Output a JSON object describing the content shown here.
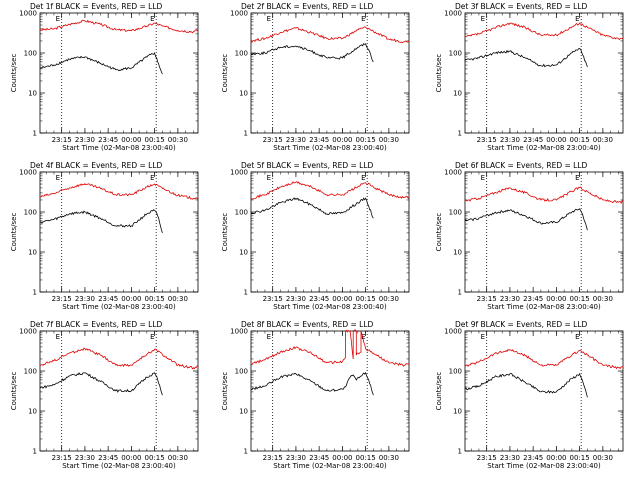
{
  "chart_data": [
    {
      "type": "line",
      "title": "Det 1f BLACK = Events, RED = LLD",
      "xlabel": "Start Time (02-Mar-08 23:00:40)",
      "ylabel": "Counts/sec",
      "y_scale": "log",
      "ylim": [
        1,
        1000
      ],
      "y_ticks": [
        "1",
        "10",
        "100",
        "1000"
      ],
      "xlim": [
        "23:01",
        "00:43"
      ],
      "x_ticks": [
        "23:15",
        "23:30",
        "23:45",
        "00:00",
        "00:15",
        "00:30"
      ],
      "markers": [
        {
          "label": "E",
          "time": "23:15"
        },
        {
          "label": "E",
          "time": "00:16"
        }
      ],
      "series": [
        {
          "name": "LLD",
          "color": "#e00000",
          "times": [
            "23:01",
            "23:10",
            "23:20",
            "23:30",
            "23:40",
            "23:50",
            "00:00",
            "00:10",
            "00:15",
            "00:20",
            "00:30",
            "00:40",
            "00:43"
          ],
          "values": [
            380,
            400,
            520,
            640,
            520,
            380,
            360,
            470,
            560,
            470,
            370,
            340,
            380
          ]
        },
        {
          "name": "Events",
          "color": "#000000",
          "times": [
            "23:01",
            "23:10",
            "23:20",
            "23:30",
            "23:40",
            "23:50",
            "00:00",
            "00:10",
            "00:15",
            "00:17",
            "00:20"
          ],
          "values": [
            42,
            50,
            70,
            80,
            55,
            38,
            42,
            80,
            100,
            60,
            30
          ]
        }
      ]
    },
    {
      "type": "line",
      "title": "Det 2f BLACK = Events, RED = LLD",
      "xlabel": "Start Time (02-Mar-08 23:00:40)",
      "ylabel": "Counts/sec",
      "y_scale": "log",
      "ylim": [
        1,
        1000
      ],
      "y_ticks": [
        "1",
        "10",
        "100",
        "1000"
      ],
      "xlim": [
        "23:01",
        "00:43"
      ],
      "x_ticks": [
        "23:15",
        "23:30",
        "23:45",
        "00:00",
        "00:15",
        "00:30"
      ],
      "markers": [
        {
          "label": "E",
          "time": "23:15"
        },
        {
          "label": "E",
          "time": "00:16"
        }
      ],
      "series": [
        {
          "name": "LLD",
          "color": "#e00000",
          "times": [
            "23:01",
            "23:10",
            "23:20",
            "23:30",
            "23:40",
            "23:50",
            "00:00",
            "00:10",
            "00:15",
            "00:20",
            "00:30",
            "00:40",
            "00:43"
          ],
          "values": [
            200,
            230,
            330,
            420,
            320,
            230,
            230,
            380,
            440,
            350,
            220,
            190,
            200
          ]
        },
        {
          "name": "Events",
          "color": "#000000",
          "times": [
            "23:01",
            "23:10",
            "23:20",
            "23:30",
            "23:40",
            "23:50",
            "00:00",
            "00:10",
            "00:15",
            "00:17",
            "00:20"
          ],
          "values": [
            95,
            100,
            140,
            150,
            110,
            75,
            75,
            140,
            170,
            120,
            60
          ]
        }
      ]
    },
    {
      "type": "line",
      "title": "Det 3f BLACK = Events, RED = LLD",
      "xlabel": "Start Time (02-Mar-08 23:00:40)",
      "ylabel": "Counts/sec",
      "y_scale": "log",
      "ylim": [
        1,
        1000
      ],
      "y_ticks": [
        "1",
        "10",
        "100",
        "1000"
      ],
      "xlim": [
        "23:01",
        "00:43"
      ],
      "x_ticks": [
        "23:15",
        "23:30",
        "23:45",
        "00:00",
        "00:15",
        "00:30"
      ],
      "markers": [
        {
          "label": "E",
          "time": "23:15"
        },
        {
          "label": "E",
          "time": "00:16"
        }
      ],
      "series": [
        {
          "name": "LLD",
          "color": "#e00000",
          "times": [
            "23:01",
            "23:10",
            "23:20",
            "23:30",
            "23:40",
            "23:50",
            "00:00",
            "00:10",
            "00:15",
            "00:20",
            "00:30",
            "00:40",
            "00:43"
          ],
          "values": [
            250,
            300,
            420,
            560,
            430,
            280,
            280,
            450,
            560,
            440,
            280,
            230,
            240
          ]
        },
        {
          "name": "Events",
          "color": "#000000",
          "times": [
            "23:01",
            "23:10",
            "23:20",
            "23:30",
            "23:40",
            "23:50",
            "00:00",
            "00:10",
            "00:15",
            "00:17",
            "00:20"
          ],
          "values": [
            65,
            75,
            100,
            110,
            75,
            48,
            50,
            100,
            130,
            90,
            45
          ]
        }
      ]
    },
    {
      "type": "line",
      "title": "Det 4f BLACK = Events, RED = LLD",
      "xlabel": "Start Time (02-Mar-08 23:00:40)",
      "ylabel": "Counts/sec",
      "y_scale": "log",
      "ylim": [
        1,
        1000
      ],
      "y_ticks": [
        "1",
        "10",
        "100",
        "1000"
      ],
      "xlim": [
        "23:01",
        "00:43"
      ],
      "x_ticks": [
        "23:15",
        "23:30",
        "23:45",
        "00:00",
        "00:15",
        "00:30"
      ],
      "markers": [
        {
          "label": "E",
          "time": "23:15"
        },
        {
          "label": "E",
          "time": "00:16"
        }
      ],
      "series": [
        {
          "name": "LLD",
          "color": "#e00000",
          "times": [
            "23:01",
            "23:10",
            "23:20",
            "23:30",
            "23:40",
            "23:50",
            "00:00",
            "00:10",
            "00:15",
            "00:20",
            "00:30",
            "00:40",
            "00:43"
          ],
          "values": [
            240,
            290,
            400,
            510,
            390,
            270,
            270,
            420,
            500,
            390,
            260,
            220,
            230
          ]
        },
        {
          "name": "Events",
          "color": "#000000",
          "times": [
            "23:01",
            "23:10",
            "23:20",
            "23:30",
            "23:40",
            "23:50",
            "00:00",
            "00:10",
            "00:15",
            "00:17",
            "00:20"
          ],
          "values": [
            55,
            65,
            90,
            100,
            70,
            45,
            45,
            90,
            110,
            80,
            30
          ]
        }
      ]
    },
    {
      "type": "line",
      "title": "Det 5f BLACK = Events, RED = LLD",
      "xlabel": "Start Time (02-Mar-08 23:00:40)",
      "ylabel": "Counts/sec",
      "y_scale": "log",
      "ylim": [
        1,
        1000
      ],
      "y_ticks": [
        "1",
        "10",
        "100",
        "1000"
      ],
      "xlim": [
        "23:01",
        "00:43"
      ],
      "x_ticks": [
        "23:15",
        "23:30",
        "23:45",
        "00:00",
        "00:15",
        "00:30"
      ],
      "markers": [
        {
          "label": "E",
          "time": "23:15"
        },
        {
          "label": "E",
          "time": "00:16"
        }
      ],
      "series": [
        {
          "name": "LLD",
          "color": "#e00000",
          "times": [
            "23:01",
            "23:10",
            "23:20",
            "23:30",
            "23:40",
            "23:50",
            "00:00",
            "00:10",
            "00:15",
            "00:20",
            "00:30",
            "00:40",
            "00:43"
          ],
          "values": [
            220,
            270,
            420,
            560,
            420,
            270,
            270,
            430,
            540,
            420,
            270,
            230,
            240
          ]
        },
        {
          "name": "Events",
          "color": "#000000",
          "times": [
            "23:01",
            "23:10",
            "23:20",
            "23:30",
            "23:40",
            "23:50",
            "00:00",
            "00:10",
            "00:15",
            "00:17",
            "00:20"
          ],
          "values": [
            95,
            110,
            170,
            220,
            150,
            90,
            95,
            170,
            220,
            140,
            70
          ]
        }
      ]
    },
    {
      "type": "line",
      "title": "Det 6f BLACK = Events, RED = LLD",
      "xlabel": "Start Time (02-Mar-08 23:00:40)",
      "ylabel": "Counts/sec",
      "y_scale": "log",
      "ylim": [
        1,
        1000
      ],
      "y_ticks": [
        "1",
        "10",
        "100",
        "1000"
      ],
      "xlim": [
        "23:01",
        "00:43"
      ],
      "x_ticks": [
        "23:15",
        "23:30",
        "23:45",
        "00:00",
        "00:15",
        "00:30"
      ],
      "markers": [
        {
          "label": "E",
          "time": "23:15"
        },
        {
          "label": "E",
          "time": "00:16"
        }
      ],
      "series": [
        {
          "name": "LLD",
          "color": "#e00000",
          "times": [
            "23:01",
            "23:10",
            "23:20",
            "23:30",
            "23:40",
            "23:50",
            "00:00",
            "00:10",
            "00:15",
            "00:20",
            "00:30",
            "00:40",
            "00:43"
          ],
          "values": [
            190,
            220,
            300,
            400,
            300,
            200,
            200,
            330,
            410,
            320,
            200,
            175,
            180
          ]
        },
        {
          "name": "Events",
          "color": "#000000",
          "times": [
            "23:01",
            "23:10",
            "23:20",
            "23:30",
            "23:40",
            "23:50",
            "00:00",
            "00:10",
            "00:15",
            "00:17",
            "00:20"
          ],
          "values": [
            60,
            70,
            95,
            110,
            80,
            52,
            55,
            100,
            120,
            85,
            35
          ]
        }
      ]
    },
    {
      "type": "line",
      "title": "Det 7f BLACK = Events, RED = LLD",
      "xlabel": "Start Time (02-Mar-08 23:00:40)",
      "ylabel": "Counts/sec",
      "y_scale": "log",
      "ylim": [
        1,
        1000
      ],
      "y_ticks": [
        "1",
        "10",
        "100",
        "1000"
      ],
      "xlim": [
        "23:01",
        "00:43"
      ],
      "x_ticks": [
        "23:15",
        "23:30",
        "23:45",
        "00:00",
        "00:15",
        "00:30"
      ],
      "markers": [
        {
          "label": "E",
          "time": "23:15"
        },
        {
          "label": "E",
          "time": "00:16"
        }
      ],
      "series": [
        {
          "name": "LLD",
          "color": "#e00000",
          "times": [
            "23:01",
            "23:10",
            "23:20",
            "23:30",
            "23:40",
            "23:50",
            "00:00",
            "00:10",
            "00:15",
            "00:20",
            "00:30",
            "00:40",
            "00:43"
          ],
          "values": [
            140,
            180,
            280,
            360,
            250,
            140,
            140,
            260,
            350,
            260,
            140,
            120,
            130
          ]
        },
        {
          "name": "Events",
          "color": "#000000",
          "times": [
            "23:01",
            "23:10",
            "23:20",
            "23:30",
            "23:40",
            "23:50",
            "00:00",
            "00:10",
            "00:15",
            "00:17",
            "00:20"
          ],
          "values": [
            38,
            45,
            75,
            90,
            55,
            32,
            32,
            70,
            90,
            60,
            25
          ]
        }
      ]
    },
    {
      "type": "line",
      "title": "Det 8f BLACK = Events, RED = LLD",
      "xlabel": "Start Time (02-Mar-08 23:00:40)",
      "ylabel": "Counts/sec",
      "y_scale": "log",
      "ylim": [
        1,
        1000
      ],
      "y_ticks": [
        "1",
        "10",
        "100",
        "1000"
      ],
      "xlim": [
        "23:01",
        "00:43"
      ],
      "x_ticks": [
        "23:15",
        "23:30",
        "23:45",
        "00:00",
        "00:15",
        "00:30"
      ],
      "markers": [
        {
          "label": "E",
          "time": "23:15"
        },
        {
          "label": "E",
          "time": "00:16"
        }
      ],
      "series": [
        {
          "name": "LLD",
          "color": "#e00000",
          "times": [
            "23:01",
            "23:10",
            "23:20",
            "23:30",
            "23:40",
            "23:50",
            "00:00",
            "00:02",
            "00:02",
            "00:05",
            "00:07",
            "00:07",
            "00:09",
            "00:09",
            "00:10",
            "00:12",
            "00:12",
            "00:15",
            "00:20",
            "00:30",
            "00:40",
            "00:43"
          ],
          "values": [
            150,
            190,
            300,
            390,
            280,
            160,
            170,
            220,
            1000,
            1000,
            200,
            1000,
            1000,
            250,
            280,
            300,
            1000,
            360,
            280,
            160,
            140,
            150
          ]
        },
        {
          "name": "Events",
          "color": "#000000",
          "times": [
            "23:01",
            "23:10",
            "23:20",
            "23:30",
            "23:40",
            "23:50",
            "00:00",
            "00:02",
            "00:05",
            "00:07",
            "00:09",
            "00:12",
            "00:15",
            "00:17",
            "00:20"
          ],
          "values": [
            35,
            42,
            70,
            85,
            55,
            32,
            35,
            40,
            70,
            80,
            60,
            75,
            90,
            60,
            25
          ]
        }
      ]
    },
    {
      "type": "line",
      "title": "Det 9f BLACK = Events, RED = LLD",
      "xlabel": "Start Time (02-Mar-08 23:00:40)",
      "ylabel": "Counts/sec",
      "y_scale": "log",
      "ylim": [
        1,
        1000
      ],
      "y_ticks": [
        "1",
        "10",
        "100",
        "1000"
      ],
      "xlim": [
        "23:01",
        "00:43"
      ],
      "x_ticks": [
        "23:15",
        "23:30",
        "23:45",
        "00:00",
        "00:15",
        "00:30"
      ],
      "markers": [
        {
          "label": "E",
          "time": "23:15"
        },
        {
          "label": "E",
          "time": "00:16"
        }
      ],
      "series": [
        {
          "name": "LLD",
          "color": "#e00000",
          "times": [
            "23:01",
            "23:10",
            "23:20",
            "23:30",
            "23:40",
            "23:50",
            "00:00",
            "00:10",
            "00:15",
            "00:20",
            "00:30",
            "00:40",
            "00:43"
          ],
          "values": [
            130,
            170,
            270,
            340,
            240,
            140,
            140,
            250,
            330,
            250,
            140,
            120,
            125
          ]
        },
        {
          "name": "Events",
          "color": "#000000",
          "times": [
            "23:01",
            "23:10",
            "23:20",
            "23:30",
            "23:40",
            "23:50",
            "00:00",
            "00:10",
            "00:15",
            "00:17",
            "00:20"
          ],
          "values": [
            35,
            42,
            70,
            85,
            52,
            30,
            30,
            65,
            85,
            55,
            22
          ]
        }
      ]
    }
  ]
}
